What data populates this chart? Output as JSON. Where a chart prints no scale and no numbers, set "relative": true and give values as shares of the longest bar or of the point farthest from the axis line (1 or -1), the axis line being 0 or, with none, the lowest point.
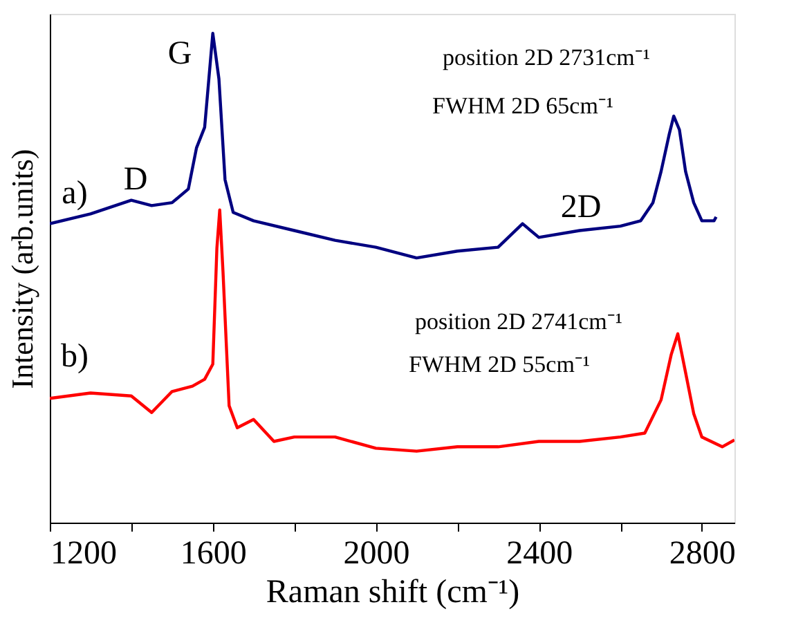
{
  "chart_data": {
    "type": "line",
    "relative": true,
    "xlabel": "Raman shift (cm⁻¹)",
    "ylabel": "Intensity (arb.units)",
    "xlim": [
      1200,
      2880
    ],
    "xticks": [
      1200,
      {
        "value": 1400,
        "label": null
      },
      1600,
      {
        "value": 1800,
        "label": null
      },
      2000,
      {
        "value": 2200,
        "label": null
      },
      2400,
      {
        "value": 2600,
        "label": null
      },
      2800
    ],
    "marker": "none",
    "line_style": "solid",
    "series": [
      {
        "color": "#000080",
        "x": [
          1200,
          1300,
          1400,
          1450,
          1500,
          1540,
          1560,
          1580,
          1600,
          1615,
          1630,
          1650,
          1700,
          1800,
          1900,
          2000,
          2100,
          2200,
          2300,
          2360,
          2400,
          2500,
          2600,
          2650,
          2680,
          2700,
          2720,
          2731,
          2745,
          2760,
          2780,
          2800,
          2830,
          2835
        ],
        "values": [
          0.611,
          0.631,
          0.659,
          0.648,
          0.654,
          0.682,
          0.766,
          0.808,
          1.0,
          0.907,
          0.701,
          0.634,
          0.617,
          0.597,
          0.577,
          0.563,
          0.541,
          0.555,
          0.563,
          0.611,
          0.583,
          0.597,
          0.606,
          0.617,
          0.654,
          0.718,
          0.794,
          0.831,
          0.803,
          0.718,
          0.654,
          0.617,
          0.617,
          0.625
        ]
      },
      {
        "color": "#ff0000",
        "x": [
          1200,
          1300,
          1400,
          1450,
          1500,
          1550,
          1580,
          1600,
          1610,
          1617,
          1625,
          1640,
          1660,
          1700,
          1750,
          1800,
          1900,
          2000,
          2100,
          2200,
          2300,
          2400,
          2500,
          2600,
          2660,
          2700,
          2725,
          2741,
          2760,
          2780,
          2800,
          2850,
          2880
        ],
        "values": [
          0.254,
          0.265,
          0.259,
          0.225,
          0.268,
          0.279,
          0.293,
          0.324,
          0.561,
          0.639,
          0.513,
          0.239,
          0.194,
          0.211,
          0.166,
          0.175,
          0.175,
          0.152,
          0.146,
          0.155,
          0.155,
          0.166,
          0.166,
          0.175,
          0.183,
          0.251,
          0.344,
          0.386,
          0.307,
          0.223,
          0.175,
          0.155,
          0.169
        ]
      }
    ],
    "annotations": [
      "a)",
      "D",
      "G",
      "2D",
      "position 2D 2731cm⁻¹",
      "FWHM 2D 65cm⁻¹",
      "b)",
      "position 2D 2741cm⁻¹",
      "FWHM 2D 55cm⁻¹"
    ]
  }
}
